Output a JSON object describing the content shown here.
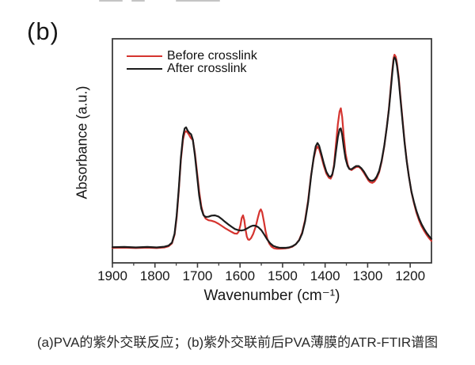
{
  "figure_label": "(b)",
  "caption": "(a)PVA的紫外交联反应；(b)紫外交联前后PVA薄膜的ATR-FTIR谱图",
  "chart_data": {
    "type": "line",
    "title": "",
    "xlabel": "Wavenumber (cm⁻¹)",
    "ylabel": "Absorbance (a.u.)",
    "xlim": [
      1900,
      1150
    ],
    "ylim": [
      0,
      1
    ],
    "x_axis_reversed": true,
    "grid": false,
    "legend_position": "top-left-inside",
    "frame_color": "#3b3b3b",
    "x_ticks": [
      1900,
      1800,
      1700,
      1600,
      1500,
      1400,
      1300,
      1200
    ],
    "x_minor_ticks": [
      1850,
      1750,
      1650,
      1550,
      1450,
      1350,
      1250
    ],
    "series": [
      {
        "name": "Before crosslink",
        "color": "#d5342f",
        "points": [
          [
            1900,
            0.067
          ],
          [
            1872,
            0.068
          ],
          [
            1845,
            0.066
          ],
          [
            1818,
            0.068
          ],
          [
            1796,
            0.066
          ],
          [
            1778,
            0.069
          ],
          [
            1768,
            0.074
          ],
          [
            1760,
            0.087
          ],
          [
            1754,
            0.125
          ],
          [
            1749,
            0.2
          ],
          [
            1744,
            0.32
          ],
          [
            1739,
            0.46
          ],
          [
            1734,
            0.55
          ],
          [
            1730,
            0.582
          ],
          [
            1727,
            0.588
          ],
          [
            1724,
            0.583
          ],
          [
            1720,
            0.572
          ],
          [
            1716,
            0.558
          ],
          [
            1711,
            0.548
          ],
          [
            1706,
            0.49
          ],
          [
            1701,
            0.405
          ],
          [
            1696,
            0.318
          ],
          [
            1691,
            0.252
          ],
          [
            1686,
            0.215
          ],
          [
            1681,
            0.198
          ],
          [
            1674,
            0.19
          ],
          [
            1667,
            0.188
          ],
          [
            1659,
            0.183
          ],
          [
            1651,
            0.175
          ],
          [
            1644,
            0.166
          ],
          [
            1636,
            0.156
          ],
          [
            1628,
            0.147
          ],
          [
            1620,
            0.138
          ],
          [
            1613,
            0.131
          ],
          [
            1607,
            0.13
          ],
          [
            1603,
            0.14
          ],
          [
            1599,
            0.168
          ],
          [
            1596,
            0.2
          ],
          [
            1593,
            0.212
          ],
          [
            1590,
            0.19
          ],
          [
            1587,
            0.148
          ],
          [
            1584,
            0.117
          ],
          [
            1581,
            0.104
          ],
          [
            1578,
            0.103
          ],
          [
            1574,
            0.111
          ],
          [
            1569,
            0.13
          ],
          [
            1563,
            0.163
          ],
          [
            1558,
            0.203
          ],
          [
            1554,
            0.23
          ],
          [
            1551,
            0.239
          ],
          [
            1548,
            0.226
          ],
          [
            1544,
            0.186
          ],
          [
            1540,
            0.142
          ],
          [
            1536,
            0.108
          ],
          [
            1531,
            0.085
          ],
          [
            1526,
            0.072
          ],
          [
            1520,
            0.065
          ],
          [
            1513,
            0.063
          ],
          [
            1506,
            0.063
          ],
          [
            1499,
            0.064
          ],
          [
            1492,
            0.065
          ],
          [
            1485,
            0.067
          ],
          [
            1477,
            0.072
          ],
          [
            1469,
            0.083
          ],
          [
            1461,
            0.103
          ],
          [
            1454,
            0.136
          ],
          [
            1447,
            0.192
          ],
          [
            1440,
            0.278
          ],
          [
            1433,
            0.39
          ],
          [
            1427,
            0.465
          ],
          [
            1422,
            0.505
          ],
          [
            1418,
            0.519
          ],
          [
            1414,
            0.508
          ],
          [
            1409,
            0.476
          ],
          [
            1403,
            0.432
          ],
          [
            1397,
            0.398
          ],
          [
            1391,
            0.38
          ],
          [
            1387,
            0.376
          ],
          [
            1383,
            0.392
          ],
          [
            1379,
            0.44
          ],
          [
            1375,
            0.52
          ],
          [
            1370,
            0.62
          ],
          [
            1366,
            0.675
          ],
          [
            1363,
            0.69
          ],
          [
            1360,
            0.652
          ],
          [
            1356,
            0.562
          ],
          [
            1352,
            0.488
          ],
          [
            1347,
            0.44
          ],
          [
            1343,
            0.419
          ],
          [
            1338,
            0.414
          ],
          [
            1333,
            0.421
          ],
          [
            1327,
            0.428
          ],
          [
            1321,
            0.429
          ],
          [
            1315,
            0.419
          ],
          [
            1309,
            0.402
          ],
          [
            1303,
            0.383
          ],
          [
            1298,
            0.367
          ],
          [
            1294,
            0.36
          ],
          [
            1289,
            0.357
          ],
          [
            1284,
            0.363
          ],
          [
            1279,
            0.377
          ],
          [
            1273,
            0.404
          ],
          [
            1267,
            0.452
          ],
          [
            1261,
            0.52
          ],
          [
            1255,
            0.607
          ],
          [
            1250,
            0.69
          ],
          [
            1246,
            0.775
          ],
          [
            1242,
            0.862
          ],
          [
            1239,
            0.915
          ],
          [
            1237,
            0.929
          ],
          [
            1234,
            0.92
          ],
          [
            1231,
            0.89
          ],
          [
            1227,
            0.83
          ],
          [
            1223,
            0.742
          ],
          [
            1218,
            0.638
          ],
          [
            1213,
            0.54
          ],
          [
            1208,
            0.455
          ],
          [
            1203,
            0.386
          ],
          [
            1197,
            0.316
          ],
          [
            1191,
            0.265
          ],
          [
            1185,
            0.222
          ],
          [
            1179,
            0.189
          ],
          [
            1173,
            0.163
          ],
          [
            1167,
            0.142
          ],
          [
            1161,
            0.124
          ],
          [
            1155,
            0.109
          ],
          [
            1150,
            0.098
          ]
        ]
      },
      {
        "name": "After crosslink",
        "color": "#1c1c1c",
        "points": [
          [
            1900,
            0.07
          ],
          [
            1872,
            0.071
          ],
          [
            1845,
            0.069
          ],
          [
            1818,
            0.071
          ],
          [
            1796,
            0.069
          ],
          [
            1778,
            0.072
          ],
          [
            1768,
            0.077
          ],
          [
            1760,
            0.09
          ],
          [
            1754,
            0.13
          ],
          [
            1749,
            0.21
          ],
          [
            1744,
            0.33
          ],
          [
            1739,
            0.47
          ],
          [
            1734,
            0.565
          ],
          [
            1730,
            0.6
          ],
          [
            1727,
            0.605
          ],
          [
            1723,
            0.59
          ],
          [
            1719,
            0.58
          ],
          [
            1715,
            0.574
          ],
          [
            1711,
            0.55
          ],
          [
            1706,
            0.48
          ],
          [
            1701,
            0.39
          ],
          [
            1696,
            0.3
          ],
          [
            1691,
            0.242
          ],
          [
            1686,
            0.213
          ],
          [
            1681,
            0.205
          ],
          [
            1674,
            0.206
          ],
          [
            1667,
            0.211
          ],
          [
            1659,
            0.212
          ],
          [
            1651,
            0.207
          ],
          [
            1644,
            0.197
          ],
          [
            1636,
            0.184
          ],
          [
            1628,
            0.172
          ],
          [
            1620,
            0.161
          ],
          [
            1612,
            0.151
          ],
          [
            1604,
            0.146
          ],
          [
            1597,
            0.144
          ],
          [
            1590,
            0.147
          ],
          [
            1583,
            0.154
          ],
          [
            1576,
            0.162
          ],
          [
            1570,
            0.166
          ],
          [
            1564,
            0.166
          ],
          [
            1557,
            0.159
          ],
          [
            1550,
            0.146
          ],
          [
            1543,
            0.126
          ],
          [
            1536,
            0.104
          ],
          [
            1529,
            0.087
          ],
          [
            1522,
            0.076
          ],
          [
            1515,
            0.071
          ],
          [
            1508,
            0.068
          ],
          [
            1500,
            0.067
          ],
          [
            1492,
            0.067
          ],
          [
            1485,
            0.069
          ],
          [
            1477,
            0.074
          ],
          [
            1469,
            0.083
          ],
          [
            1461,
            0.101
          ],
          [
            1454,
            0.131
          ],
          [
            1447,
            0.185
          ],
          [
            1440,
            0.27
          ],
          [
            1433,
            0.385
          ],
          [
            1427,
            0.47
          ],
          [
            1422,
            0.52
          ],
          [
            1418,
            0.535
          ],
          [
            1414,
            0.523
          ],
          [
            1409,
            0.488
          ],
          [
            1403,
            0.443
          ],
          [
            1397,
            0.406
          ],
          [
            1391,
            0.387
          ],
          [
            1387,
            0.384
          ],
          [
            1383,
            0.396
          ],
          [
            1379,
            0.43
          ],
          [
            1375,
            0.49
          ],
          [
            1370,
            0.562
          ],
          [
            1366,
            0.596
          ],
          [
            1363,
            0.6
          ],
          [
            1360,
            0.572
          ],
          [
            1356,
            0.515
          ],
          [
            1352,
            0.465
          ],
          [
            1347,
            0.432
          ],
          [
            1343,
            0.419
          ],
          [
            1338,
            0.418
          ],
          [
            1333,
            0.425
          ],
          [
            1327,
            0.432
          ],
          [
            1321,
            0.432
          ],
          [
            1315,
            0.423
          ],
          [
            1309,
            0.408
          ],
          [
            1303,
            0.389
          ],
          [
            1298,
            0.374
          ],
          [
            1294,
            0.368
          ],
          [
            1289,
            0.366
          ],
          [
            1284,
            0.371
          ],
          [
            1279,
            0.384
          ],
          [
            1273,
            0.41
          ],
          [
            1267,
            0.457
          ],
          [
            1261,
            0.523
          ],
          [
            1255,
            0.605
          ],
          [
            1250,
            0.685
          ],
          [
            1246,
            0.765
          ],
          [
            1242,
            0.85
          ],
          [
            1239,
            0.905
          ],
          [
            1237,
            0.917
          ],
          [
            1234,
            0.908
          ],
          [
            1231,
            0.878
          ],
          [
            1227,
            0.818
          ],
          [
            1223,
            0.732
          ],
          [
            1218,
            0.63
          ],
          [
            1213,
            0.535
          ],
          [
            1208,
            0.452
          ],
          [
            1203,
            0.385
          ],
          [
            1197,
            0.318
          ],
          [
            1191,
            0.27
          ],
          [
            1185,
            0.23
          ],
          [
            1179,
            0.198
          ],
          [
            1173,
            0.172
          ],
          [
            1167,
            0.151
          ],
          [
            1161,
            0.133
          ],
          [
            1155,
            0.118
          ],
          [
            1150,
            0.107
          ]
        ]
      }
    ]
  }
}
